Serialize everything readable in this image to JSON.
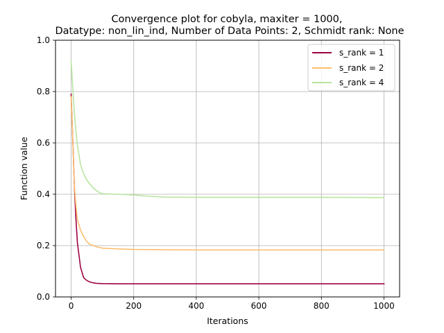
{
  "chart_data": {
    "type": "line",
    "title": "Convergence plot for cobyla, maxiter = 1000,\nDatatype: non_lin_ind, Number of Data Points: 2, Schmidt rank: None",
    "title_lines": [
      "Convergence plot for cobyla, maxiter = 1000,",
      "Datatype: non_lin_ind, Number of Data Points: 2, Schmidt rank: None"
    ],
    "xlabel": "Iterations",
    "ylabel": "Function value",
    "xlim": [
      -50,
      1050
    ],
    "ylim": [
      0.0,
      1.0
    ],
    "xticks": [
      0,
      200,
      400,
      600,
      800,
      1000
    ],
    "xtick_labels": [
      "0",
      "200",
      "400",
      "600",
      "800",
      "1000"
    ],
    "yticks": [
      0.0,
      0.2,
      0.4,
      0.6,
      0.8,
      1.0
    ],
    "ytick_labels": [
      "0.0",
      "0.2",
      "0.4",
      "0.6",
      "0.8",
      "1.0"
    ],
    "grid": true,
    "legend_position": "top-right",
    "series": [
      {
        "name": "s_rank = 1",
        "color": "#9e0142",
        "x": [
          0,
          5,
          10,
          15,
          20,
          30,
          40,
          50,
          60,
          70,
          80,
          100,
          150,
          200,
          300,
          400,
          600,
          800,
          1000
        ],
        "y": [
          0.79,
          0.62,
          0.44,
          0.31,
          0.21,
          0.115,
          0.075,
          0.064,
          0.058,
          0.055,
          0.053,
          0.052,
          0.051,
          0.051,
          0.051,
          0.051,
          0.051,
          0.051,
          0.051
        ]
      },
      {
        "name": "s_rank = 2",
        "color": "#fdbf6f",
        "x": [
          0,
          5,
          10,
          15,
          20,
          30,
          40,
          50,
          60,
          70,
          80,
          100,
          150,
          200,
          300,
          400,
          600,
          800,
          1000
        ],
        "y": [
          0.78,
          0.62,
          0.44,
          0.36,
          0.3,
          0.26,
          0.235,
          0.215,
          0.205,
          0.2,
          0.196,
          0.19,
          0.187,
          0.185,
          0.184,
          0.183,
          0.183,
          0.183,
          0.183
        ]
      },
      {
        "name": "s_rank = 4",
        "color": "#b8e4a0",
        "x": [
          0,
          5,
          10,
          15,
          20,
          30,
          40,
          50,
          60,
          70,
          80,
          90,
          100,
          150,
          200,
          250,
          300,
          400,
          600,
          800,
          1000
        ],
        "y": [
          0.92,
          0.82,
          0.72,
          0.65,
          0.59,
          0.515,
          0.48,
          0.455,
          0.44,
          0.425,
          0.415,
          0.407,
          0.402,
          0.4,
          0.397,
          0.392,
          0.389,
          0.388,
          0.388,
          0.388,
          0.387
        ]
      }
    ]
  }
}
